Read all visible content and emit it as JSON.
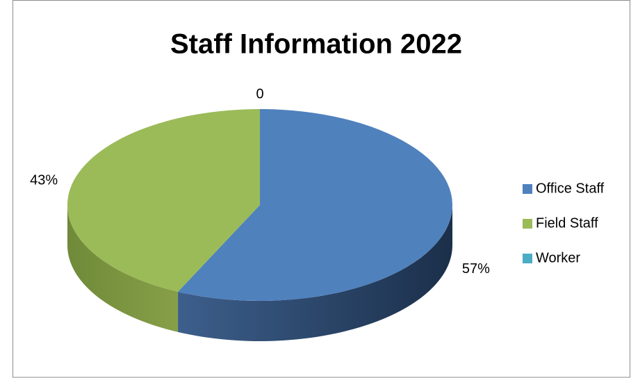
{
  "chart_data": {
    "type": "pie",
    "title": "Staff Information 2022",
    "categories": [
      "Office Staff",
      "Field Staff",
      "Worker"
    ],
    "values": [
      57,
      43,
      0
    ],
    "value_labels": [
      "57%",
      "43%",
      "0"
    ],
    "colors": [
      "#4f81bd",
      "#9bbb59",
      "#4bacc6"
    ],
    "legend": "right"
  }
}
